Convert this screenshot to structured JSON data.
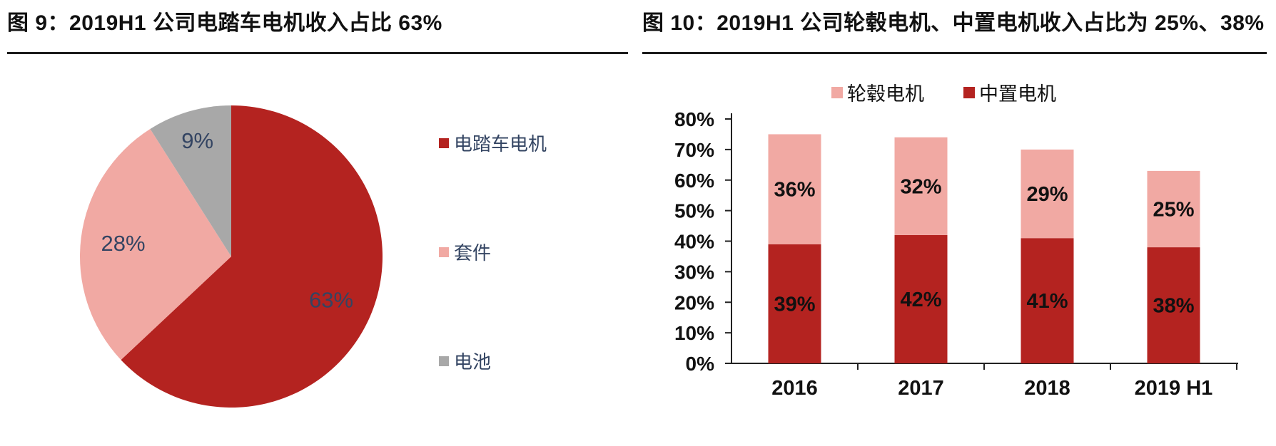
{
  "colors": {
    "dark_red": "#B42320",
    "pink": "#F1A9A3",
    "gray": "#A8A8A8",
    "pie_label": "#334462",
    "text": "#111111",
    "axis": "#222222",
    "rule": "#1A1A1A"
  },
  "figures": {
    "left": {
      "title": "图 9：2019H1 公司电踏车电机收入占比 63%"
    },
    "right": {
      "title": "图 10：2019H1 公司轮毂电机、中置电机收入占比为 25%、38%"
    }
  },
  "chart_data": [
    {
      "type": "pie",
      "title": "图 9：2019H1 公司电踏车电机收入占比 63%",
      "start_angle": "top",
      "direction": "clockwise",
      "legend_position": "right",
      "label_color": "#334462",
      "slices": [
        {
          "label": "电踏车电机",
          "value": 63,
          "data_label": "63%",
          "color": "#B42320"
        },
        {
          "label": "套件",
          "value": 28,
          "data_label": "28%",
          "color": "#F1A9A3"
        },
        {
          "label": "电池",
          "value": 9,
          "data_label": "9%",
          "color": "#A8A8A8"
        }
      ]
    },
    {
      "type": "bar",
      "subtype": "stacked",
      "title": "图 10：2019H1 公司轮毂电机、中置电机收入占比为 25%、38%",
      "categories": [
        "2016",
        "2017",
        "2018",
        "2019 H1"
      ],
      "series": [
        {
          "name": "中置电机",
          "color": "#B42320",
          "values": [
            39,
            42,
            41,
            38
          ],
          "labels": [
            "39%",
            "42%",
            "41%",
            "38%"
          ]
        },
        {
          "name": "轮毂电机",
          "color": "#F1A9A3",
          "values": [
            36,
            32,
            29,
            25
          ],
          "labels": [
            "36%",
            "32%",
            "29%",
            "25%"
          ]
        }
      ],
      "totals": [
        75,
        74,
        70,
        63
      ],
      "legend": [
        {
          "name": "轮毂电机",
          "color": "#F1A9A3"
        },
        {
          "name": "中置电机",
          "color": "#B42320"
        }
      ],
      "legend_position": "top",
      "grid": false,
      "ylim": [
        0,
        80
      ],
      "y_ticks": [
        "0%",
        "10%",
        "20%",
        "30%",
        "40%",
        "50%",
        "60%",
        "70%",
        "80%"
      ],
      "y_tick_values": [
        0,
        10,
        20,
        30,
        40,
        50,
        60,
        70,
        80
      ]
    }
  ]
}
